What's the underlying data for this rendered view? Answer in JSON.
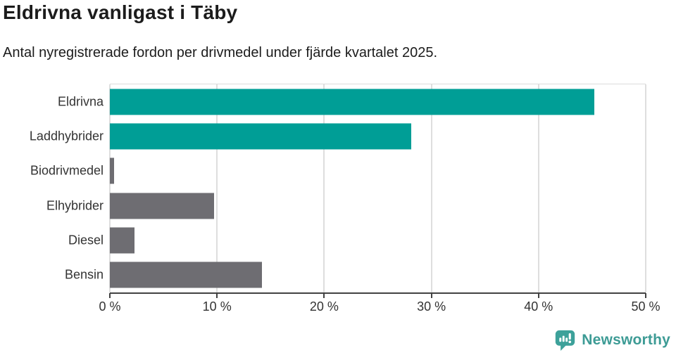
{
  "header": {
    "title": "Eldrivna vanligast i Täby",
    "subtitle": "Antal nyregistrerade fordon per drivmedel under fjärde kvartalet 2025."
  },
  "chart_data": {
    "type": "bar",
    "orientation": "horizontal",
    "title": "Eldrivna vanligast i Täby",
    "subtitle": "Antal nyregistrerade fordon per drivmedel under fjärde kvartalet 2025.",
    "categories": [
      "Eldrivna",
      "Laddhybrider",
      "Biodrivmedel",
      "Elhybrider",
      "Diesel",
      "Bensin"
    ],
    "values": [
      45.2,
      28.1,
      0.4,
      9.7,
      2.3,
      14.2
    ],
    "value_unit": "%",
    "xlim": [
      0,
      50
    ],
    "x_tick_labels": [
      "0 %",
      "10 %",
      "20 %",
      "30 %",
      "40 %",
      "50 %"
    ],
    "x_tick_values": [
      0,
      10,
      20,
      30,
      40,
      50
    ],
    "grid": "vertical gridlines on, light gray",
    "legend": "none",
    "bar_colors": [
      "#009e96",
      "#009e96",
      "#6e6d72",
      "#6e6d72",
      "#6e6d72",
      "#6e6d72"
    ],
    "highlighted_categories": [
      "Eldrivna",
      "Laddhybrider"
    ]
  },
  "footer": {
    "brand_name": "Newsworthy",
    "logo_icon": "newsworthy-speech-bubble-bar-chart-icon"
  },
  "colors": {
    "accent_teal": "#009e96",
    "default_bar_gray": "#6e6d72",
    "gridline": "#dedede",
    "axis_line": "#424242",
    "tick_text": "#333333",
    "title_text": "#1c1c1c",
    "brand_teal": "#3d9b95"
  }
}
